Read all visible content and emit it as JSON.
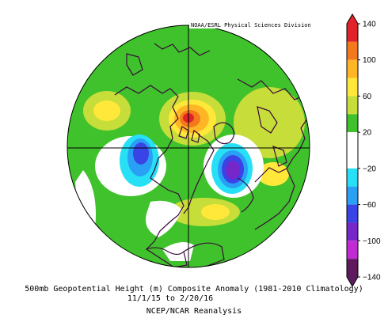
{
  "map": {
    "credit": "NOAA/ESRL Physical Sciences Division",
    "title": "500mb Geopotential Height (m) Composite Anomaly (1981-2010 Climatology)",
    "date_range": "11/1/15  to 2/20/16",
    "source": "NCEP/NCAR Reanalysis",
    "projection": "north polar stereographic",
    "colors": {
      "land_outline": "#3b0a3b",
      "graticule": "#000000",
      "background": "#ffffff"
    }
  },
  "colorbar": {
    "ticks": [
      "140",
      "100",
      "60",
      "20",
      "−20",
      "−60",
      "−100",
      "−140"
    ],
    "bins": [
      {
        "lo": 120,
        "hi": 140,
        "color": "#e2222a"
      },
      {
        "lo": 100,
        "hi": 120,
        "color": "#f4791c"
      },
      {
        "lo": 80,
        "hi": 100,
        "color": "#ffb626"
      },
      {
        "lo": 60,
        "hi": 80,
        "color": "#ffe83a"
      },
      {
        "lo": 40,
        "hi": 60,
        "color": "#c6dd3a"
      },
      {
        "lo": 20,
        "hi": 40,
        "color": "#3fc22b"
      },
      {
        "lo": -20,
        "hi": 20,
        "color": "#ffffff"
      },
      {
        "lo": -40,
        "hi": -20,
        "color": "#27e0f5"
      },
      {
        "lo": -60,
        "hi": -40,
        "color": "#2aa0f5"
      },
      {
        "lo": -80,
        "hi": -60,
        "color": "#3a43e6"
      },
      {
        "lo": -100,
        "hi": -80,
        "color": "#7527c9"
      },
      {
        "lo": -120,
        "hi": -100,
        "color": "#c22bd3"
      },
      {
        "lo": -140,
        "hi": -120,
        "color": "#5d1b5e"
      }
    ]
  }
}
